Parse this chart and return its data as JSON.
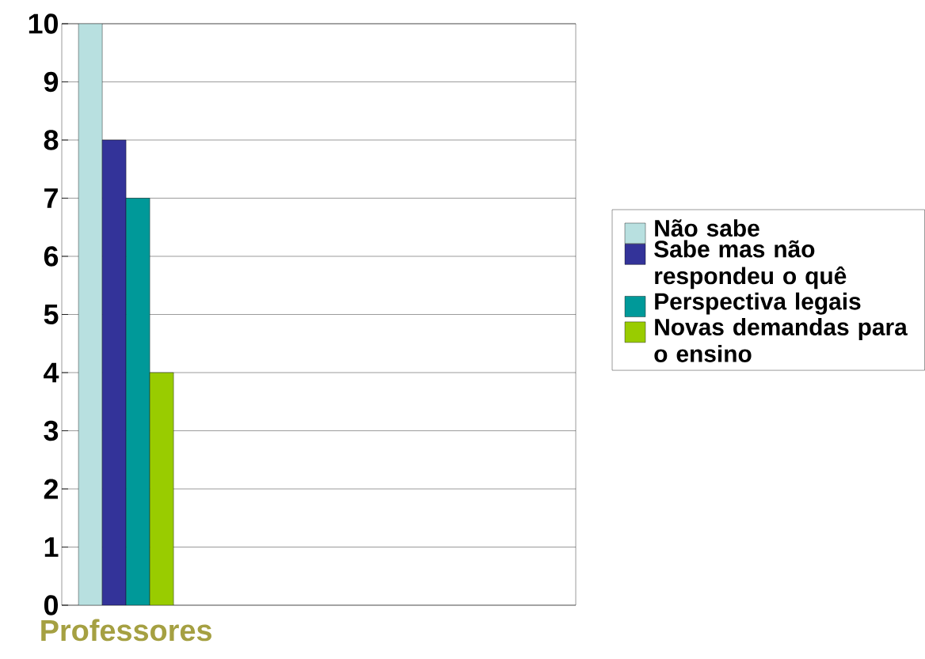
{
  "chart_data": {
    "type": "bar",
    "categories": [
      "Professores",
      null,
      null,
      null
    ],
    "series": [
      {
        "name": "Não sabe",
        "color": "#b8e0e0",
        "values": [
          10,
          null,
          null,
          null
        ]
      },
      {
        "name": "Sabe mas não respondeu o quê",
        "color": "#333399",
        "values": [
          8,
          null,
          null,
          null
        ]
      },
      {
        "name": "Perspectiva legais",
        "color": "#009999",
        "values": [
          7,
          null,
          null,
          null
        ]
      },
      {
        "name": "Novas demandas para o ensino",
        "color": "#99cc00",
        "values": [
          4,
          null,
          null,
          null
        ]
      }
    ],
    "ylim": [
      0,
      10
    ],
    "yticks": [
      0,
      1,
      2,
      3,
      4,
      5,
      6,
      7,
      8,
      9,
      10
    ],
    "grid": "y",
    "legend": "right"
  }
}
